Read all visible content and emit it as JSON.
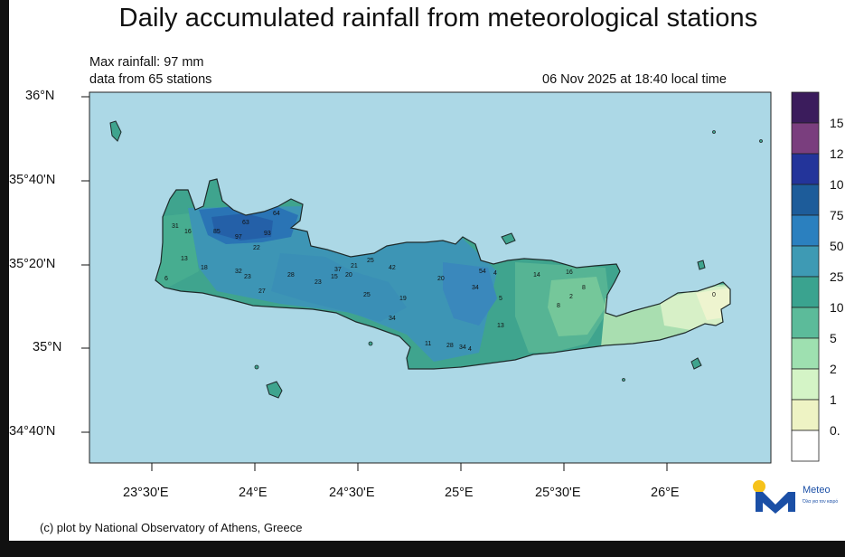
{
  "title": "Daily accumulated rainfall from meteorological stations",
  "info": {
    "max_rainfall": "Max rainfall: 97 mm",
    "stations": "data from 65 stations",
    "timestamp": "06 Nov 2025 at 18:40 local time"
  },
  "axes": {
    "lat_labels": [
      "36°N",
      "35°40'N",
      "35°20'N",
      "35°N",
      "34°40'N"
    ],
    "lon_labels": [
      "23°30'E",
      "24°E",
      "24°30'E",
      "25°E",
      "25°30'E",
      "26°E"
    ]
  },
  "legend": {
    "labels": [
      "15",
      "12",
      "10",
      "75",
      "50",
      "25",
      "10",
      "5",
      "2",
      "1",
      "0."
    ],
    "colors": [
      "#3b1c5c",
      "#7a3e7e",
      "#23349a",
      "#1d5c9a",
      "#2b80bf",
      "#3e9ab4",
      "#3aa38f",
      "#5cbb9a",
      "#9ee0b0",
      "#d4f4c6",
      "#eef3c4",
      "#ffffff"
    ]
  },
  "station_values": [
    "16",
    "31",
    "13",
    "18",
    "6",
    "85",
    "97",
    "93",
    "63",
    "64",
    "22",
    "32",
    "23",
    "28",
    "27",
    "23",
    "15",
    "20",
    "37",
    "21",
    "25",
    "42",
    "25",
    "19",
    "34",
    "20",
    "34",
    "54",
    "4",
    "5",
    "14",
    "16",
    "2",
    "8",
    "8",
    "13",
    "11",
    "28",
    "34",
    "4",
    "0"
  ],
  "credit": "(c) plot by National Observatory of Athens, Greece",
  "logo": {
    "name": "Meteo",
    "tagline": "Όλα για τον καιρό"
  },
  "colors": {
    "sea": "#acd8e6",
    "frame_background": "#111111"
  }
}
